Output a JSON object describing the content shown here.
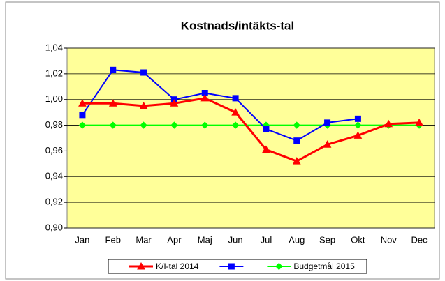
{
  "chart_data": {
    "type": "line",
    "title": "Kostnads/intäkts-tal",
    "categories": [
      "Jan",
      "Feb",
      "Mar",
      "Apr",
      "Maj",
      "Jun",
      "Jul",
      "Aug",
      "Sep",
      "Okt",
      "Nov",
      "Dec"
    ],
    "series": [
      {
        "name": "K/I-tal 2014",
        "color": "#ff0000",
        "marker": "triangle",
        "values": [
          0.997,
          0.997,
          0.995,
          0.997,
          1.001,
          0.99,
          0.961,
          0.952,
          0.965,
          0.972,
          0.981,
          0.982
        ]
      },
      {
        "color": "#0000ff",
        "marker": "square",
        "values": [
          0.988,
          1.023,
          1.021,
          1.0,
          1.005,
          1.001,
          0.977,
          0.968,
          0.982,
          0.985,
          null,
          null
        ]
      },
      {
        "name": "Budgetmål 2015",
        "color": "#00ff00",
        "marker": "diamond",
        "values": [
          0.98,
          0.98,
          0.98,
          0.98,
          0.98,
          0.98,
          0.98,
          0.98,
          0.98,
          0.98,
          0.98,
          0.98
        ]
      }
    ],
    "ylim": [
      0.9,
      1.04
    ],
    "yticks": [
      {
        "value": 0.9,
        "label": "0,90"
      },
      {
        "value": 0.92,
        "label": "0,92"
      },
      {
        "value": 0.94,
        "label": "0,94"
      },
      {
        "value": 0.96,
        "label": "0,96"
      },
      {
        "value": 0.98,
        "label": "0,98"
      },
      {
        "value": 1.0,
        "label": "1,00"
      },
      {
        "value": 1.02,
        "label": "1,02"
      },
      {
        "value": 1.04,
        "label": "1,04"
      }
    ],
    "grid": true,
    "legend": "bottom",
    "plot_background": "#ffff99"
  }
}
